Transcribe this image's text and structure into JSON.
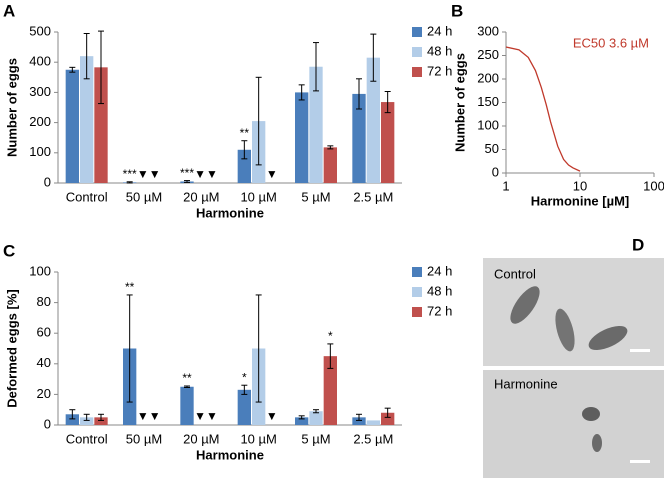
{
  "chart_data": [
    {
      "type": "bar",
      "panel": "A",
      "ylabel": "Number of eggs",
      "xlabel": "Harmonine",
      "categories": [
        "Control",
        "50 µM",
        "20 µM",
        "10 µM",
        "5 µM",
        "2.5 µM"
      ],
      "series": [
        {
          "name": "24 h",
          "color": "#4a7ebb",
          "values": [
            375,
            2,
            5,
            110,
            300,
            295
          ],
          "errors": [
            8,
            2,
            3,
            30,
            25,
            50
          ]
        },
        {
          "name": "48 h",
          "color": "#b3cde8",
          "values": [
            420,
            0,
            0,
            205,
            385,
            415
          ],
          "errors": [
            75,
            0,
            0,
            145,
            80,
            78
          ]
        },
        {
          "name": "72 h",
          "color": "#c0504d",
          "values": [
            383,
            0,
            0,
            0,
            118,
            268
          ],
          "errors": [
            120,
            0,
            0,
            0,
            5,
            35
          ]
        }
      ],
      "annotations": [
        {
          "text": "***",
          "category": 1,
          "series": 0
        },
        {
          "text": "▼▼",
          "category": 1,
          "series": 1
        },
        {
          "text": "***",
          "category": 2,
          "series": 0
        },
        {
          "text": "▼▼",
          "category": 2,
          "series": 1
        },
        {
          "text": "**",
          "category": 3,
          "series": 0
        },
        {
          "text": "▼",
          "category": 3,
          "series": 2
        }
      ],
      "ylim": [
        0,
        500
      ],
      "yticks": [
        0,
        100,
        200,
        300,
        400,
        500
      ],
      "legend": "right"
    },
    {
      "type": "line",
      "panel": "B",
      "ylabel": "Number of eggs",
      "xlabel": "Harmonine [µM]",
      "annotation": "EC50 3.6 µM",
      "x": [
        1,
        1.5,
        2,
        2.5,
        3,
        3.5,
        4,
        5,
        6,
        7,
        8,
        10
      ],
      "values": [
        268,
        262,
        246,
        218,
        182,
        145,
        109,
        57,
        29,
        17,
        11,
        4
      ],
      "color": "#c0392b",
      "xlog": true,
      "xlim": [
        1,
        100
      ],
      "xticks": [
        1,
        10,
        100
      ],
      "ylim": [
        0,
        300
      ],
      "yticks": [
        0,
        50,
        100,
        150,
        200,
        250,
        300
      ]
    },
    {
      "type": "bar",
      "panel": "C",
      "ylabel": "Deformed eggs [%]",
      "xlabel": "Harmonine",
      "categories": [
        "Control",
        "50 µM",
        "20 µM",
        "10 µM",
        "5 µM",
        "2.5 µM"
      ],
      "series": [
        {
          "name": "24 h",
          "color": "#4a7ebb",
          "values": [
            7,
            50,
            25,
            23,
            5,
            5
          ],
          "errors": [
            3,
            35,
            0.5,
            3,
            1,
            2
          ]
        },
        {
          "name": "48 h",
          "color": "#b3cde8",
          "values": [
            5,
            0,
            0,
            50,
            9,
            3
          ],
          "errors": [
            2,
            0,
            0,
            35,
            1,
            0
          ]
        },
        {
          "name": "72 h",
          "color": "#c0504d",
          "values": [
            5,
            0,
            0,
            0,
            45,
            8
          ],
          "errors": [
            2,
            0,
            0,
            0,
            8,
            3
          ]
        }
      ],
      "annotations": [
        {
          "text": "**",
          "category": 1,
          "series": 0
        },
        {
          "text": "▼▼",
          "category": 1,
          "series": 1
        },
        {
          "text": "**",
          "category": 2,
          "series": 0
        },
        {
          "text": "▼▼",
          "category": 2,
          "series": 1
        },
        {
          "text": "*",
          "category": 3,
          "series": 0
        },
        {
          "text": "▼",
          "category": 3,
          "series": 2
        },
        {
          "text": "*",
          "category": 4,
          "series": 2
        }
      ],
      "ylim": [
        0,
        100
      ],
      "yticks": [
        0,
        20,
        40,
        60,
        80,
        100
      ],
      "legend": "right"
    }
  ],
  "image_panel": {
    "panel": "D",
    "captions": [
      "Control",
      "Harmonine"
    ]
  }
}
